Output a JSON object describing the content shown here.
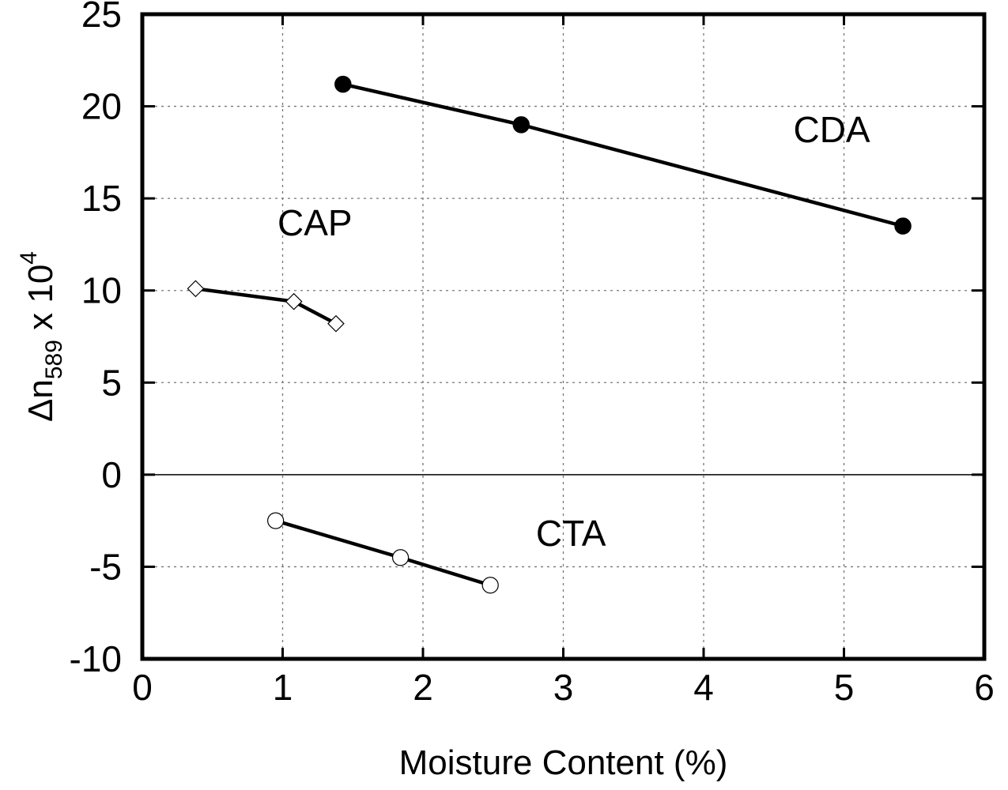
{
  "chart_data": {
    "type": "line",
    "title": "",
    "xlabel": "Moisture Content (%)",
    "ylabel": {
      "main": "Δn",
      "subscript": "589",
      "mid": " x 10",
      "superscript": "4"
    },
    "xlim": [
      0,
      6
    ],
    "ylim": [
      -10,
      25
    ],
    "x_ticks": [
      0,
      1,
      2,
      3,
      4,
      5,
      6
    ],
    "y_ticks": [
      -10,
      -5,
      0,
      5,
      10,
      15,
      20,
      25
    ],
    "grid": true,
    "series": [
      {
        "name": "CDA",
        "marker": "filled-circle",
        "x": [
          1.43,
          2.7,
          5.42
        ],
        "y": [
          21.2,
          19.0,
          13.5
        ],
        "label_position": "upper-right"
      },
      {
        "name": "CAP",
        "marker": "open-diamond",
        "x": [
          0.38,
          1.08,
          1.38
        ],
        "y": [
          10.1,
          9.4,
          8.2
        ],
        "label_position": "upper-left"
      },
      {
        "name": "CTA",
        "marker": "open-circle",
        "x": [
          0.95,
          1.84,
          2.48
        ],
        "y": [
          -2.5,
          -4.5,
          -6.0
        ],
        "label_position": "lower-middle"
      }
    ]
  }
}
